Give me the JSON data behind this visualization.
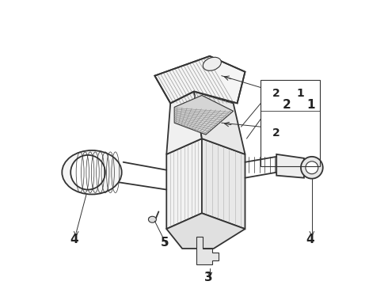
{
  "bg_color": "#ffffff",
  "line_color": "#333333",
  "label_color": "#222222",
  "figsize": [
    4.9,
    3.6
  ],
  "dpi": 100
}
